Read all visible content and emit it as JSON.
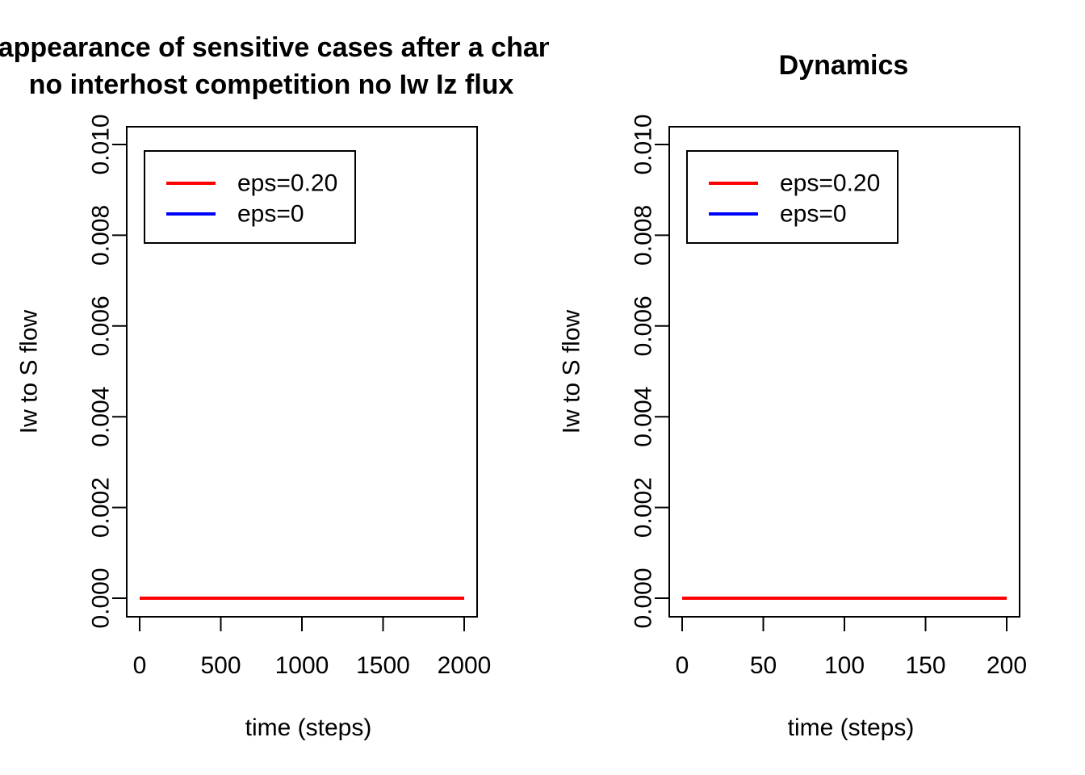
{
  "chart_data": [
    {
      "type": "line",
      "title_lines": [
        "Disappearance of sensitive cases after a change",
        "no interhost competition no Iw Iz flux"
      ],
      "xlabel": "time (steps)",
      "ylabel": "Iw to S flow",
      "xlim": [
        0,
        2000
      ],
      "ylim": [
        0,
        0.01
      ],
      "x_ticks": [
        0,
        500,
        1000,
        1500,
        2000
      ],
      "x_tick_labels": [
        "0",
        "500",
        "1000",
        "1500",
        "2000"
      ],
      "y_ticks": [
        0,
        0.002,
        0.004,
        0.006,
        0.008,
        0.01
      ],
      "y_tick_labels": [
        "0.000",
        "0.002",
        "0.004",
        "0.006",
        "0.008",
        "0.010"
      ],
      "legend_position": "top-left",
      "series": [
        {
          "name": "eps=0.20",
          "color": "#ff0000",
          "x": [
            0,
            2000
          ],
          "values": [
            0,
            0
          ]
        },
        {
          "name": "eps=0",
          "color": "#0000ff",
          "x": [
            0,
            2000
          ],
          "values": [
            0,
            0
          ]
        }
      ]
    },
    {
      "type": "line",
      "title_lines": [
        "Dynamics"
      ],
      "xlabel": "time (steps)",
      "ylabel": "Iw to S flow",
      "xlim": [
        0,
        200
      ],
      "ylim": [
        0,
        0.01
      ],
      "x_ticks": [
        0,
        50,
        100,
        150,
        200
      ],
      "x_tick_labels": [
        "0",
        "50",
        "100",
        "150",
        "200"
      ],
      "y_ticks": [
        0,
        0.002,
        0.004,
        0.006,
        0.008,
        0.01
      ],
      "y_tick_labels": [
        "0.000",
        "0.002",
        "0.004",
        "0.006",
        "0.008",
        "0.010"
      ],
      "legend_position": "top-left",
      "series": [
        {
          "name": "eps=0.20",
          "color": "#ff0000",
          "x": [
            0,
            200
          ],
          "values": [
            0,
            0
          ]
        },
        {
          "name": "eps=0",
          "color": "#0000ff",
          "x": [
            0,
            200
          ],
          "values": [
            0,
            0
          ]
        }
      ]
    }
  ]
}
